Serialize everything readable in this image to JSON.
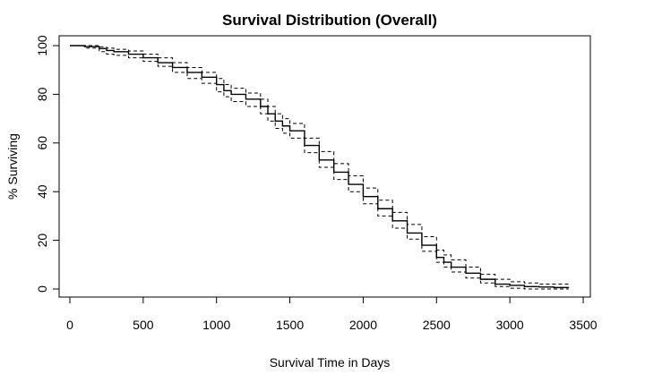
{
  "chart_data": {
    "type": "line",
    "title": "Survival Distribution (Overall)",
    "xlabel": "Survival Time in Days",
    "ylabel": "% Surviving",
    "xlim": [
      0,
      3500
    ],
    "ylim": [
      0,
      100
    ],
    "x_ticks": [
      0,
      500,
      1000,
      1500,
      2000,
      2500,
      3000,
      3500
    ],
    "y_ticks": [
      0,
      20,
      40,
      60,
      80,
      100
    ],
    "grid": false,
    "legend": "none",
    "series": [
      {
        "role": "estimate",
        "style": "solid",
        "x": [
          0,
          100,
          200,
          250,
          300,
          400,
          500,
          600,
          700,
          800,
          900,
          1000,
          1050,
          1100,
          1200,
          1300,
          1350,
          1400,
          1450,
          1500,
          1600,
          1700,
          1800,
          1900,
          2000,
          2100,
          2200,
          2300,
          2400,
          2500,
          2550,
          2600,
          2700,
          2800,
          2900,
          3000,
          3100,
          3200,
          3300,
          3400
        ],
        "y": [
          100,
          99.6,
          98.8,
          98,
          97.5,
          96.5,
          95,
          93,
          91,
          89,
          87,
          84,
          81.5,
          80,
          78,
          75,
          72,
          69,
          67,
          65,
          59,
          53,
          48,
          43,
          38,
          33,
          28,
          23,
          18,
          13,
          11,
          9,
          6.5,
          4,
          2,
          1.5,
          1,
          0.8,
          0.6,
          0.5
        ]
      },
      {
        "role": "upper-confidence-limit",
        "style": "dashed",
        "x": [
          0,
          100,
          200,
          250,
          300,
          400,
          500,
          600,
          700,
          800,
          900,
          1000,
          1050,
          1100,
          1200,
          1300,
          1350,
          1400,
          1450,
          1500,
          1600,
          1700,
          1800,
          1900,
          2000,
          2100,
          2200,
          2300,
          2400,
          2500,
          2550,
          2600,
          2700,
          2800,
          2900,
          3000,
          3100,
          3200,
          3300,
          3400
        ],
        "y": [
          100,
          100,
          99.5,
          99,
          98.5,
          97.8,
          96.5,
          95,
          93,
          91,
          89,
          86.5,
          84,
          82.5,
          80.5,
          78,
          75,
          72,
          70,
          68,
          62,
          56.5,
          51.5,
          46.5,
          41.5,
          36.5,
          31.5,
          26.5,
          21.5,
          16,
          14,
          12,
          9,
          6,
          4,
          3,
          2.5,
          2,
          2,
          2
        ]
      },
      {
        "role": "lower-confidence-limit",
        "style": "dashed",
        "x": [
          0,
          100,
          200,
          250,
          300,
          400,
          500,
          600,
          700,
          800,
          900,
          1000,
          1050,
          1100,
          1200,
          1300,
          1350,
          1400,
          1450,
          1500,
          1600,
          1700,
          1800,
          1900,
          2000,
          2100,
          2200,
          2300,
          2400,
          2500,
          2550,
          2600,
          2700,
          2800,
          2900,
          3000,
          3100,
          3200,
          3300,
          3400
        ],
        "y": [
          100,
          99,
          97.5,
          96.5,
          96,
          95,
          93.5,
          91.5,
          89,
          86.5,
          84.5,
          81,
          79,
          77,
          75,
          72,
          69,
          66,
          64,
          62,
          56,
          50,
          45,
          40,
          35,
          30,
          25,
          20.5,
          15.5,
          11,
          9,
          7,
          4.5,
          2.5,
          1,
          0.3,
          0,
          0,
          0,
          0
        ]
      }
    ]
  }
}
